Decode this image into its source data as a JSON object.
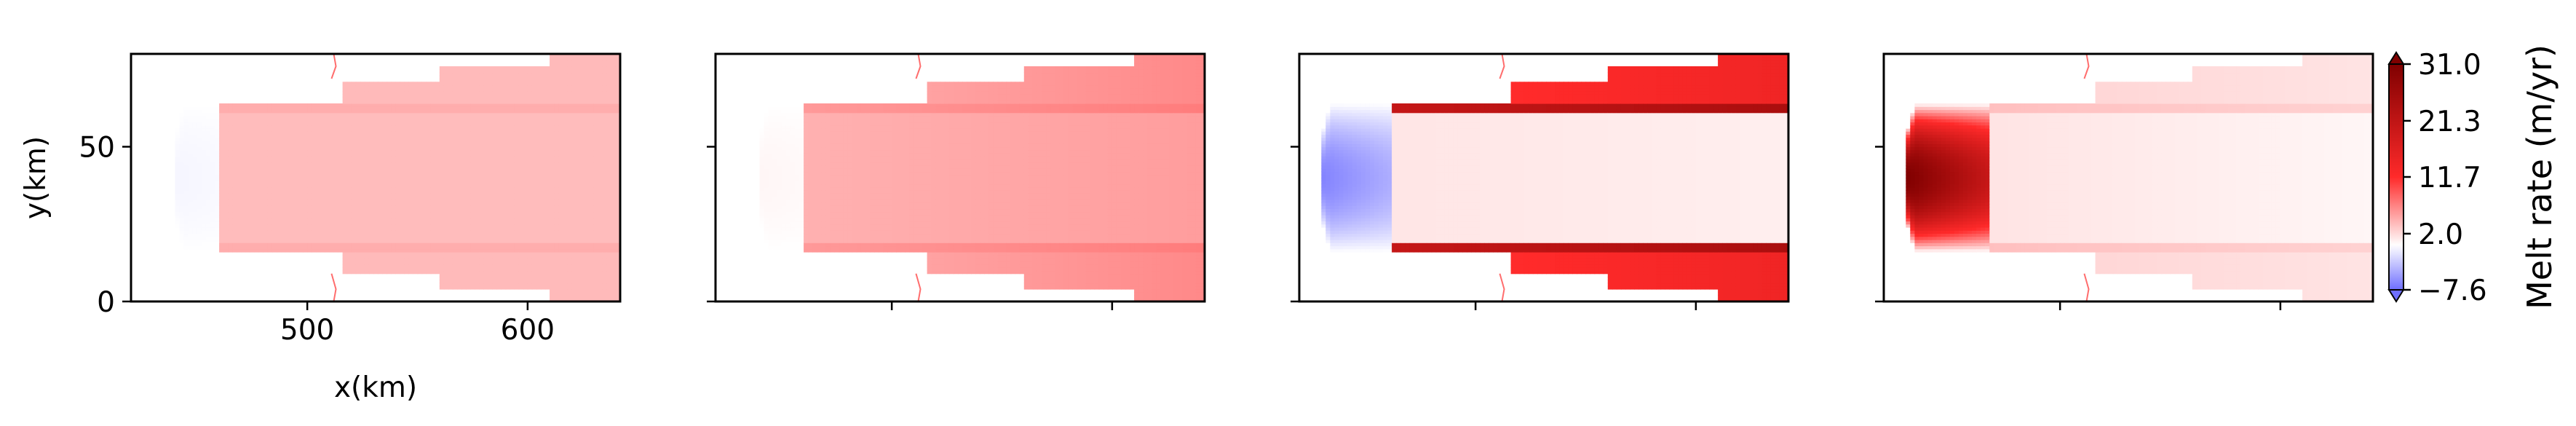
{
  "chart_data": {
    "type": "heatmap",
    "xlabel": "x(km)",
    "ylabel": "y(km)",
    "xlim": [
      420,
      642
    ],
    "ylim": [
      0,
      80
    ],
    "xticks": [
      500,
      600
    ],
    "yticks": [
      0,
      50
    ],
    "xtick_labels": [
      "500",
      "600"
    ],
    "ytick_labels": [
      "0",
      "50"
    ],
    "colorbar": {
      "label": "Melt rate (m/yr)",
      "vmin": -7.6,
      "vmax": 31.0,
      "ticks": [
        31.0,
        21.3,
        11.7,
        2.0,
        -7.6
      ],
      "tick_labels": [
        "31.0",
        "21.3",
        "11.7",
        "2.0",
        "−7.6"
      ],
      "extend": "both",
      "colors": [
        "#6e6eff",
        "#ffffff",
        "#ff2a2a",
        "#7f0000"
      ]
    },
    "panels": [
      {
        "show_tick_labels": true,
        "shelf_front_x": 440,
        "front_melt": -0.5,
        "band_start_x": 461,
        "inner_melt": 3.7,
        "inner_melt_end": 3.7,
        "edge_melt": 4.5,
        "edge_melt_end": 4.5,
        "outer_melt": 3.8,
        "outer_melt_end": 3.8,
        "cold_core_melt": 0
      },
      {
        "show_tick_labels": false,
        "shelf_front_x": 440,
        "front_melt": 0.5,
        "band_start_x": 461,
        "inner_melt": 4.3,
        "inner_melt_end": 5.4,
        "edge_melt": 5.6,
        "edge_melt_end": 7.2,
        "outer_melt": 4.5,
        "outer_melt_end": 6.5,
        "cold_core_melt": 0
      },
      {
        "show_tick_labels": false,
        "shelf_front_x": 430,
        "front_melt": -6.5,
        "band_start_x": 462,
        "inner_melt": 1.4,
        "inner_melt_end": 0.9,
        "edge_melt": 20.5,
        "edge_melt_end": 24.5,
        "outer_melt": 10.5,
        "outer_melt_end": 14.0,
        "cold_core_melt": -6.5
      },
      {
        "show_tick_labels": false,
        "shelf_front_x": 430,
        "front_melt": 31.0,
        "band_start_x": 468,
        "inner_melt": 1.5,
        "inner_melt_end": 0.5,
        "edge_melt": 3.5,
        "edge_melt_end": 2.5,
        "outer_melt": 2.5,
        "outer_melt_end": 1.5,
        "cold_core_melt": 0
      }
    ]
  }
}
